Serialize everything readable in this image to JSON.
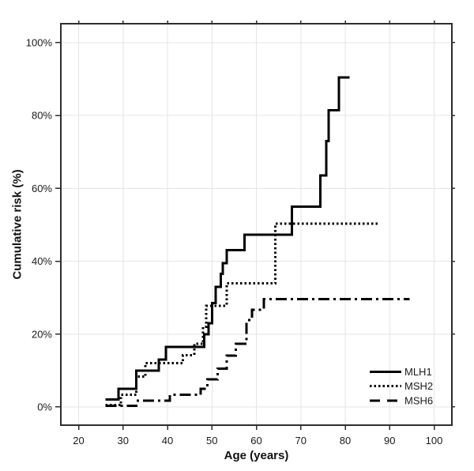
{
  "figure": {
    "background": "#ffffff",
    "frame_color": "#2e2e2e",
    "grid_color": "#e5e5e5",
    "text_color": "#1a1a1a",
    "line_color": "#000000"
  },
  "chart_data": {
    "type": "line",
    "subtype": "step-after",
    "title": "",
    "xlabel": "Age (years)",
    "ylabel": "Cumulative risk (%)",
    "xlim": [
      16,
      104
    ],
    "ylim": [
      -5,
      105.2
    ],
    "x_ticks": [
      20,
      30,
      40,
      50,
      60,
      70,
      80,
      90,
      100
    ],
    "y_ticks": [
      0,
      20,
      40,
      60,
      80,
      100
    ],
    "y_tick_labels": [
      "0%",
      "20%",
      "40%",
      "60%",
      "80%",
      "100%"
    ],
    "grid": true,
    "legend_position": "lower-right",
    "series": [
      {
        "name": "MLH1",
        "style": "solid",
        "points": [
          [
            26,
            2
          ],
          [
            29,
            5
          ],
          [
            33,
            10
          ],
          [
            38,
            13
          ],
          [
            39.6,
            16.5
          ],
          [
            48.3,
            20
          ],
          [
            49.2,
            23
          ],
          [
            50,
            28.5
          ],
          [
            50.8,
            33
          ],
          [
            52,
            36.5
          ],
          [
            52.4,
            39.5
          ],
          [
            53.3,
            43
          ],
          [
            57.3,
            47.3
          ],
          [
            68,
            55
          ],
          [
            74.4,
            63.5
          ],
          [
            75.7,
            73
          ],
          [
            76.3,
            81.5
          ],
          [
            78.6,
            90.5
          ],
          [
            81,
            90.5
          ]
        ]
      },
      {
        "name": "MSH2",
        "style": "dotted",
        "points": [
          [
            26,
            0.5
          ],
          [
            29.5,
            3.3
          ],
          [
            33,
            8.3
          ],
          [
            35,
            12
          ],
          [
            43.5,
            14.2
          ],
          [
            46,
            17.3
          ],
          [
            48,
            22
          ],
          [
            48.7,
            27.8
          ],
          [
            53.3,
            33.9
          ],
          [
            64.3,
            50.3
          ],
          [
            87.3,
            50.3
          ]
        ]
      },
      {
        "name": "MSH6",
        "style": "dashdot",
        "points": [
          [
            26,
            0.3
          ],
          [
            33,
            1.7
          ],
          [
            40.5,
            3.3
          ],
          [
            47.5,
            5
          ],
          [
            49,
            7.6
          ],
          [
            51.3,
            10.5
          ],
          [
            53.3,
            14.1
          ],
          [
            55.4,
            17.3
          ],
          [
            57.8,
            23.8
          ],
          [
            59,
            26.7
          ],
          [
            61.7,
            29.6
          ],
          [
            94.5,
            29.6
          ]
        ]
      }
    ]
  }
}
